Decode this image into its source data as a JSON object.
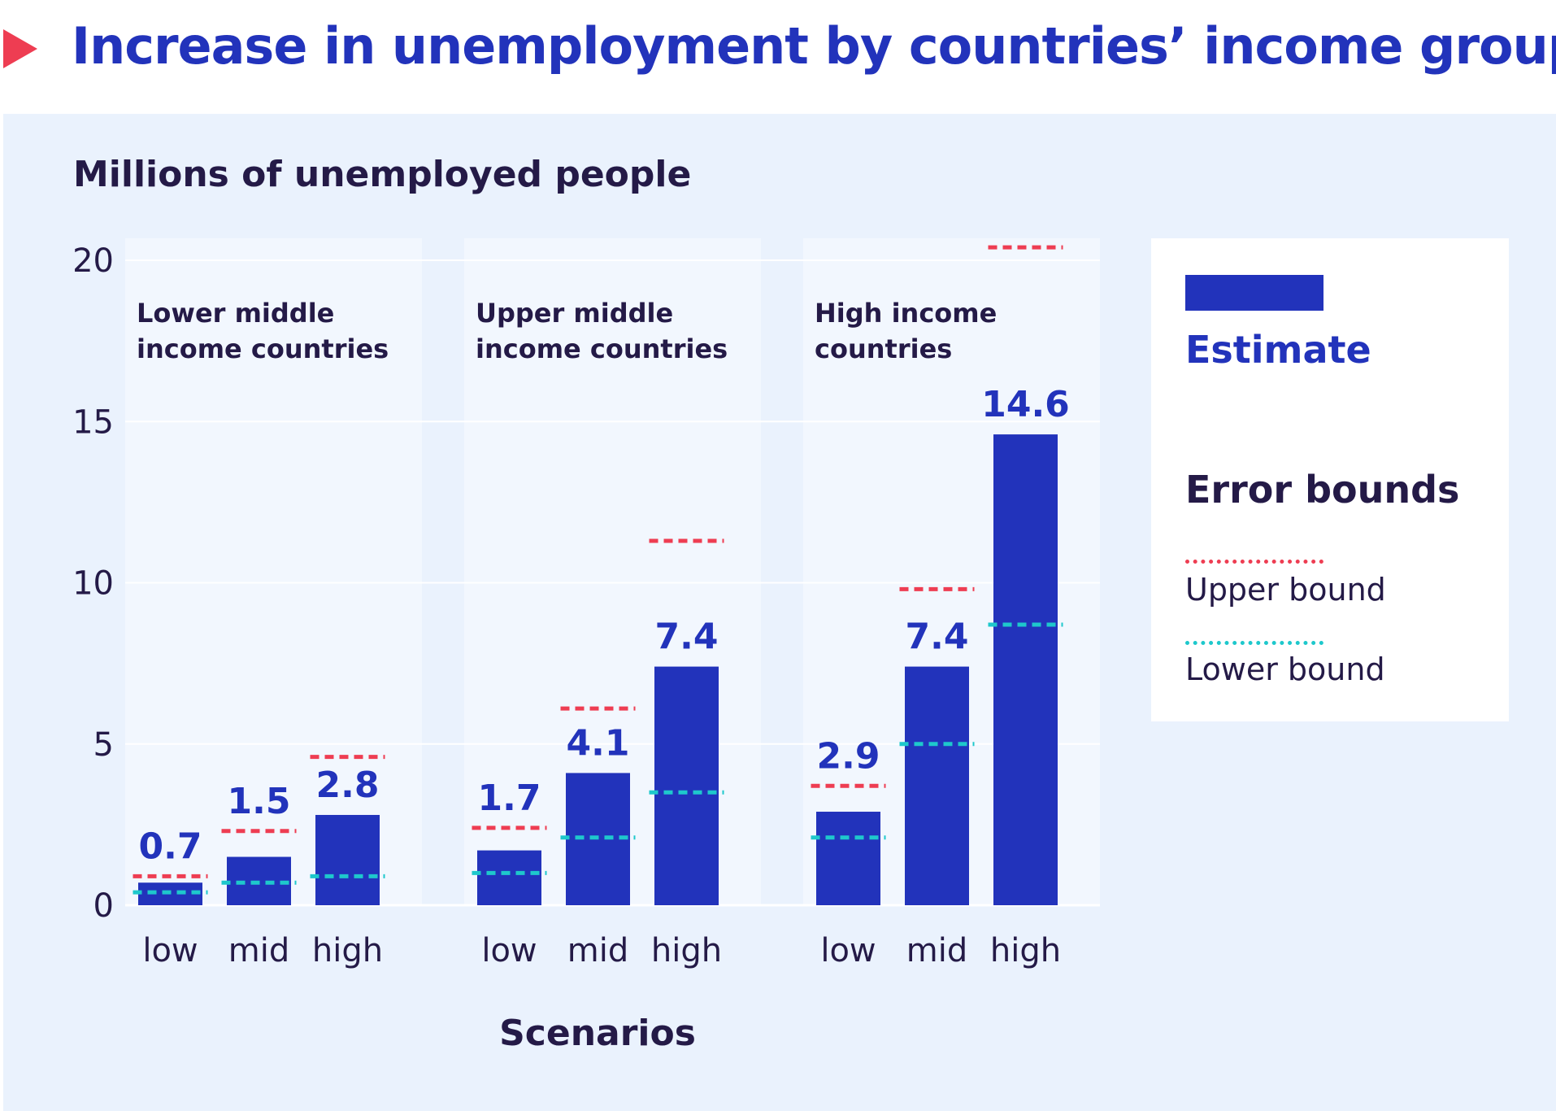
{
  "header": {
    "title": "Increase in unemployment by countries’ income groups"
  },
  "colors": {
    "estimate": "#2233bb",
    "upper_bound": "#ee3d52",
    "lower_bound": "#1ec8cc",
    "panel": "#eaf2fd",
    "text": "#241a47"
  },
  "legend": {
    "estimate_label": "Estimate",
    "error_bounds_title": "Error bounds",
    "upper_label": "Upper bound",
    "lower_label": "Lower bound"
  },
  "chart_data": {
    "type": "bar",
    "title": "Increase in unemployment by countries’ income groups",
    "ylabel": "Millions of unemployed people",
    "xlabel": "Scenarios",
    "ylim": [
      0,
      20
    ],
    "yticks": [
      "0",
      "5",
      "10",
      "15",
      "20"
    ],
    "categories": [
      "low",
      "mid",
      "high"
    ],
    "grid": true,
    "legend_position": "right",
    "groups": [
      {
        "title_lines": [
          "Lower middle",
          "income countries"
        ],
        "estimate": [
          0.7,
          1.5,
          2.8
        ],
        "value_labels": [
          "0.7",
          "1.5",
          "2.8"
        ],
        "upper": [
          0.9,
          2.3,
          4.6
        ],
        "lower": [
          0.4,
          0.7,
          0.9
        ]
      },
      {
        "title_lines": [
          "Upper middle",
          "income countries"
        ],
        "estimate": [
          1.7,
          4.1,
          7.4
        ],
        "value_labels": [
          "1.7",
          "4.1",
          "7.4"
        ],
        "upper": [
          2.4,
          6.1,
          11.3
        ],
        "lower": [
          1.0,
          2.1,
          3.5
        ]
      },
      {
        "title_lines": [
          "High income",
          "countries"
        ],
        "estimate": [
          2.9,
          7.4,
          14.6
        ],
        "value_labels": [
          "2.9",
          "7.4",
          "14.6"
        ],
        "upper": [
          3.7,
          9.8,
          20.4
        ],
        "lower": [
          2.1,
          5.0,
          8.7
        ]
      }
    ]
  }
}
